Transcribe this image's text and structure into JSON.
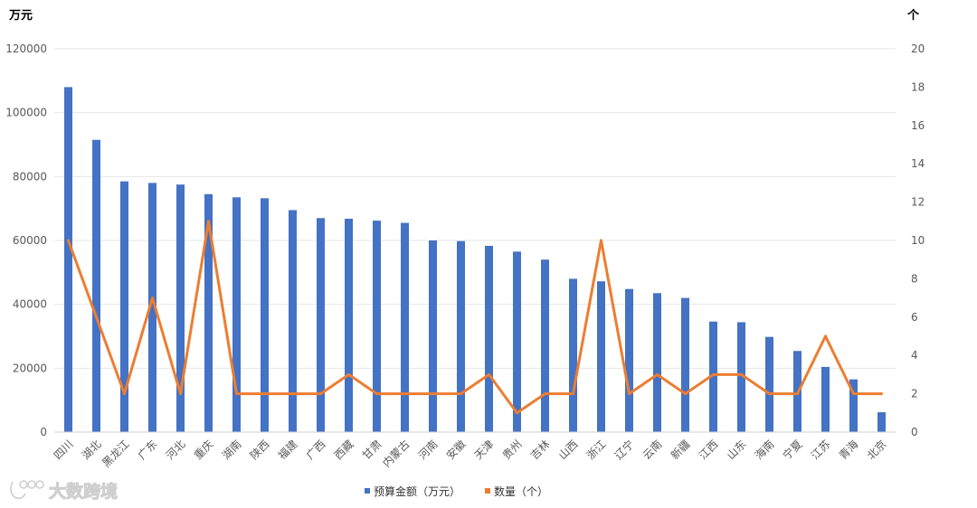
{
  "chart_data": {
    "type": "bar",
    "left_axis_unit": "万元",
    "right_axis_unit": "个",
    "categories": [
      "四川",
      "湖北",
      "黑龙江",
      "广东",
      "河北",
      "重庆",
      "湖南",
      "陕西",
      "福建",
      "广西",
      "西藏",
      "甘肃",
      "内蒙古",
      "河南",
      "安徽",
      "天津",
      "贵州",
      "吉林",
      "山西",
      "浙江",
      "辽宁",
      "云南",
      "新疆",
      "江西",
      "山东",
      "海南",
      "宁夏",
      "江苏",
      "青海",
      "北京"
    ],
    "series": [
      {
        "name": "预算金额（万元）",
        "type": "bar",
        "axis": "left",
        "color": "#4472C4",
        "values": [
          108000,
          91500,
          78500,
          78000,
          77500,
          74500,
          73500,
          73200,
          69500,
          67000,
          66800,
          66200,
          65500,
          60000,
          59800,
          58300,
          56500,
          54000,
          48000,
          47200,
          44800,
          43500,
          42000,
          34600,
          34400,
          29800,
          25400,
          20400,
          16500,
          6200
        ]
      },
      {
        "name": "数量（个）",
        "type": "line",
        "axis": "right",
        "color": "#ED7D31",
        "values": [
          10,
          6,
          2,
          7,
          2,
          11,
          2,
          2,
          2,
          2,
          3,
          2,
          2,
          2,
          2,
          3,
          1,
          2,
          2,
          10,
          2,
          3,
          2,
          3,
          3,
          2,
          2,
          5,
          2,
          2
        ]
      }
    ],
    "left_axis": {
      "ylim": [
        0,
        120000
      ],
      "ticks": [
        "0",
        "20000",
        "40000",
        "60000",
        "80000",
        "100000",
        "120000"
      ]
    },
    "right_axis": {
      "ylim": [
        0,
        20
      ],
      "ticks": [
        "0",
        "2",
        "4",
        "6",
        "8",
        "10",
        "12",
        "14",
        "16",
        "18",
        "20"
      ]
    },
    "grid": true,
    "legend_position": "bottom"
  },
  "watermark": {
    "text": "大数跨境"
  }
}
